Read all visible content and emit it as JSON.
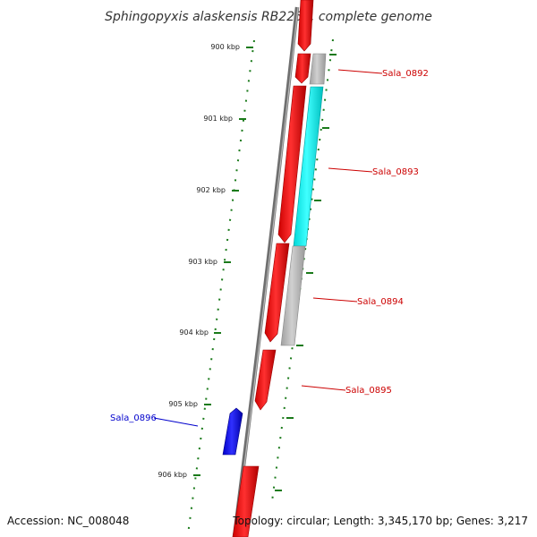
{
  "title": "Sphingopyxis alaskensis RB2256, complete genome",
  "accession": "Accession: NC_008048",
  "topology": "Topology: circular; Length: 3,345,170 bp; Genes: 3,217",
  "colors": {
    "forward_cds": "#ff0000",
    "reverse_cds": "#00ffff",
    "other_gene": "#b0b0b0",
    "highlight_gene": "#0000ff",
    "label_red": "#cc0000",
    "label_blue": "#0000cc",
    "ticks": "#1a7a1a",
    "backbone": "#808080"
  },
  "kbp_labels": [
    "900 kbp",
    "901 kbp",
    "902 kbp",
    "903 kbp",
    "904 kbp",
    "905 kbp",
    "906 kbp"
  ],
  "gene_labels": [
    {
      "name": "Sala_0892",
      "color": "red"
    },
    {
      "name": "Sala_0893",
      "color": "red"
    },
    {
      "name": "Sala_0894",
      "color": "red"
    },
    {
      "name": "Sala_0895",
      "color": "red"
    },
    {
      "name": "Sala_0896",
      "color": "blue"
    }
  ]
}
